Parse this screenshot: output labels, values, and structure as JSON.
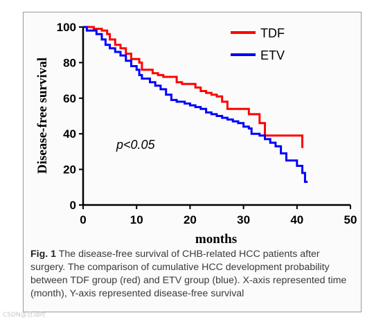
{
  "chart_data": {
    "type": "line",
    "title": "",
    "xlabel": "months",
    "ylabel": "Disease-free survival",
    "xlim": [
      0,
      50
    ],
    "ylim": [
      0,
      100
    ],
    "x_ticks": [
      "0",
      "10",
      "20",
      "30",
      "40",
      "50"
    ],
    "y_ticks": [
      "0",
      "20",
      "40",
      "60",
      "80",
      "100"
    ],
    "grid": false,
    "legend_position": "top-right",
    "annotation": "p<0.05",
    "series": [
      {
        "name": "TDF",
        "color": "#ff0000",
        "step": true,
        "points": [
          [
            0,
            100
          ],
          [
            2,
            100
          ],
          [
            2,
            99
          ],
          [
            3.5,
            99
          ],
          [
            3.5,
            98
          ],
          [
            4.5,
            98
          ],
          [
            4.5,
            96
          ],
          [
            5,
            96
          ],
          [
            5,
            93
          ],
          [
            6,
            93
          ],
          [
            6,
            90
          ],
          [
            7,
            90
          ],
          [
            7,
            88
          ],
          [
            8,
            88
          ],
          [
            8,
            85
          ],
          [
            9,
            85
          ],
          [
            9,
            82
          ],
          [
            10.5,
            82
          ],
          [
            10.5,
            80
          ],
          [
            11,
            80
          ],
          [
            11,
            76
          ],
          [
            13,
            76
          ],
          [
            13,
            74
          ],
          [
            14,
            74
          ],
          [
            14,
            73
          ],
          [
            15,
            73
          ],
          [
            15,
            72
          ],
          [
            17.5,
            72
          ],
          [
            17.5,
            69
          ],
          [
            18.5,
            69
          ],
          [
            18.5,
            68
          ],
          [
            21,
            68
          ],
          [
            21,
            66
          ],
          [
            22,
            66
          ],
          [
            22,
            64
          ],
          [
            23,
            64
          ],
          [
            23,
            63
          ],
          [
            24,
            63
          ],
          [
            24,
            62
          ],
          [
            25,
            62
          ],
          [
            25,
            61
          ],
          [
            26,
            61
          ],
          [
            26,
            58
          ],
          [
            27,
            58
          ],
          [
            27,
            54
          ],
          [
            31,
            54
          ],
          [
            31,
            51
          ],
          [
            33,
            51
          ],
          [
            33,
            46
          ],
          [
            34,
            46
          ],
          [
            34,
            39
          ],
          [
            41,
            39
          ],
          [
            41,
            32
          ]
        ]
      },
      {
        "name": "ETV",
        "color": "#0000ff",
        "step": true,
        "points": [
          [
            0,
            100
          ],
          [
            0.7,
            100
          ],
          [
            0.7,
            98
          ],
          [
            2.5,
            98
          ],
          [
            2.5,
            96
          ],
          [
            3.5,
            96
          ],
          [
            3.5,
            93
          ],
          [
            4.2,
            93
          ],
          [
            4.2,
            90
          ],
          [
            5,
            90
          ],
          [
            5,
            88
          ],
          [
            6,
            88
          ],
          [
            6,
            86
          ],
          [
            7,
            86
          ],
          [
            7,
            84
          ],
          [
            8,
            84
          ],
          [
            8,
            81
          ],
          [
            9,
            81
          ],
          [
            9,
            78
          ],
          [
            10,
            78
          ],
          [
            10,
            76
          ],
          [
            10.5,
            76
          ],
          [
            10.5,
            73
          ],
          [
            11,
            73
          ],
          [
            11,
            71
          ],
          [
            12.5,
            71
          ],
          [
            12.5,
            69
          ],
          [
            13.5,
            69
          ],
          [
            13.5,
            67
          ],
          [
            14.5,
            67
          ],
          [
            14.5,
            65
          ],
          [
            15.5,
            65
          ],
          [
            15.5,
            62
          ],
          [
            16.5,
            62
          ],
          [
            16.5,
            59
          ],
          [
            17.5,
            59
          ],
          [
            17.5,
            58
          ],
          [
            19,
            58
          ],
          [
            19,
            57
          ],
          [
            20,
            57
          ],
          [
            20,
            56
          ],
          [
            21,
            56
          ],
          [
            21,
            55
          ],
          [
            22,
            55
          ],
          [
            22,
            54
          ],
          [
            23,
            54
          ],
          [
            23,
            52
          ],
          [
            24,
            52
          ],
          [
            24,
            51
          ],
          [
            25,
            51
          ],
          [
            25,
            50
          ],
          [
            26,
            50
          ],
          [
            26,
            49
          ],
          [
            27,
            49
          ],
          [
            27,
            48
          ],
          [
            28,
            48
          ],
          [
            28,
            47
          ],
          [
            29,
            47
          ],
          [
            29,
            46
          ],
          [
            30,
            46
          ],
          [
            30,
            44
          ],
          [
            31,
            44
          ],
          [
            31,
            43
          ],
          [
            31.5,
            43
          ],
          [
            31.5,
            40
          ],
          [
            33,
            40
          ],
          [
            33,
            39
          ],
          [
            34,
            39
          ],
          [
            34,
            37
          ],
          [
            35,
            37
          ],
          [
            35,
            35
          ],
          [
            36,
            35
          ],
          [
            36,
            33
          ],
          [
            37,
            33
          ],
          [
            37,
            29
          ],
          [
            38,
            29
          ],
          [
            38,
            25
          ],
          [
            40,
            25
          ],
          [
            40,
            22
          ],
          [
            41,
            22
          ],
          [
            41,
            18
          ],
          [
            41.5,
            18
          ],
          [
            41.5,
            13
          ],
          [
            42,
            13
          ]
        ]
      }
    ]
  },
  "caption": {
    "label": "Fig. 1",
    "text": " The disease-free survival of CHB-related HCC patients after surgery. The comparison of cumulative HCC development probability between TDF group (red) and ETV group (blue). X-axis represented time (month), Y-axis represented disease-free survival"
  },
  "watermark": "CSDN@旦汕时"
}
